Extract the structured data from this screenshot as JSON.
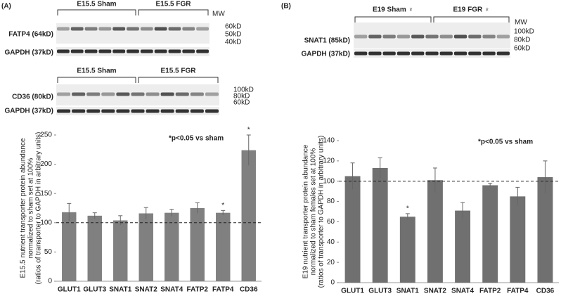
{
  "panels": [
    "(A)",
    "(B)"
  ],
  "blots": [
    {
      "groups": [
        "E15.5 Sham",
        "E15.5 FGR"
      ],
      "rows": [
        "FATP4 (64kD)",
        "GAPDH (37kD)"
      ],
      "mw_title": "MW",
      "mw": [
        "60kD",
        "50kD",
        "40kD"
      ]
    },
    {
      "groups": [
        "E15.5 Sham",
        "E15.5 FGR"
      ],
      "rows": [
        "CD36 (80kD)",
        "GAPDH (37kD)"
      ],
      "mw": [
        "100kD",
        "80kD",
        "60kD"
      ]
    },
    {
      "groups": [
        "E19 Sham ♀",
        "E19 FGR ♀"
      ],
      "rows": [
        "SNAT1 (85kD)",
        "GAPDH (37kD)"
      ],
      "mw_title": "MW",
      "mw": [
        "100kD",
        "80kD",
        "60kD"
      ]
    }
  ],
  "chart_data": [
    {
      "type": "bar",
      "ylabel": [
        "E15.5 nutrient transporter protein abundance",
        "normalized to sham set at 100%",
        "(ratios of transporter to GAPDH in arbitrary units)"
      ],
      "note": "*p<0.05 vs sham",
      "categories": [
        "GLUT1",
        "GLUT3",
        "SNAT1",
        "SNAT2",
        "SNAT4",
        "FATP2",
        "FATP4",
        "CD36"
      ],
      "values": [
        118,
        112,
        104,
        116,
        117,
        125,
        117,
        224
      ],
      "errors": [
        15,
        5,
        8,
        10,
        6,
        9,
        4,
        26
      ],
      "markers": [
        null,
        null,
        null,
        null,
        null,
        null,
        "*",
        "*"
      ],
      "reference_line": 100,
      "color": "#808080",
      "ylim": [
        0,
        250
      ],
      "yticks": [
        0,
        50,
        100,
        150,
        200,
        250
      ]
    },
    {
      "type": "bar",
      "ylabel": [
        "E19 nutrient transporter protein abundance",
        "normalized to sham females set at 100%",
        "(ratios of transporter to GAPDH in arbitrary units)"
      ],
      "note": "*p<0.05 vs sham",
      "categories": [
        "GLUT1",
        "GLUT3",
        "SNAT1",
        "SNAT2",
        "SNAT4",
        "FATP2",
        "FATP4",
        "CD36"
      ],
      "values": [
        105,
        113,
        65,
        101,
        71,
        96,
        85,
        104
      ],
      "errors": [
        13,
        10,
        3,
        12,
        8,
        2,
        9,
        16
      ],
      "markers": [
        null,
        null,
        "*",
        null,
        null,
        null,
        null,
        null
      ],
      "reference_line": 100,
      "color": "#707070",
      "ylim": [
        0,
        140
      ],
      "yticks": [
        0,
        20,
        40,
        60,
        80,
        100,
        120,
        140
      ]
    }
  ]
}
